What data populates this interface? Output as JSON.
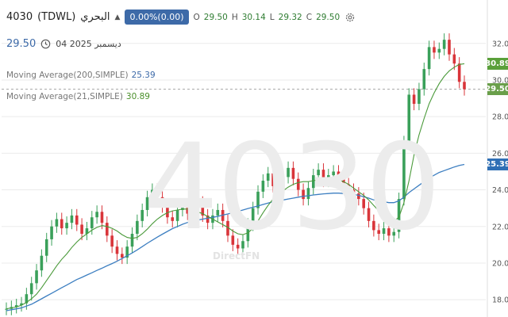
{
  "header": {
    "symbol": "4030",
    "exchange": "(TDWL)",
    "name": "البحري",
    "change_badge": "0.00%(0.00)",
    "open_label": "O",
    "open_value": "29.50",
    "high_label": "H",
    "high_value": "30.14",
    "low_label": "L",
    "low_value": "29.32",
    "close_label": "C",
    "close_value": "29.50",
    "last_price": "29.50",
    "date": "04 2025 ديسمبر"
  },
  "indicators": [
    {
      "label": "Moving Average(200,SIMPLE)",
      "value": "25.39",
      "color": "#3d7fc1"
    },
    {
      "label": "Moving Average(21,SIMPLE)",
      "value": "30.89",
      "color": "#4a9a3a"
    }
  ],
  "watermark": "4030",
  "brand": "DirectFN",
  "price_tags": [
    {
      "value": "30.89",
      "color": "#5aa03a",
      "y": 30.89
    },
    {
      "value": "29.50",
      "color": "#6a9f4a",
      "y": 29.5
    },
    {
      "value": "25.39",
      "color": "#2f6fb5",
      "y": 25.39
    }
  ],
  "chart_data": {
    "type": "candlestick",
    "ylim": [
      17.4,
      32.9
    ],
    "y_ticks": [
      "18.00",
      "20.00",
      "22.00",
      "24.00",
      "26.00",
      "28.00",
      "30.00",
      "32.00"
    ],
    "up_color": "#3aa05a",
    "down_color": "#d9353a",
    "close_series": [
      17.5,
      17.6,
      17.7,
      17.8,
      18.3,
      18.9,
      19.6,
      20.4,
      21.3,
      22.0,
      22.4,
      21.9,
      22.2,
      22.6,
      22.1,
      21.6,
      21.9,
      22.5,
      22.8,
      22.2,
      21.5,
      20.9,
      20.5,
      20.3,
      20.9,
      21.6,
      22.3,
      22.9,
      23.6,
      24.0,
      23.6,
      23.1,
      22.5,
      22.3,
      22.9,
      23.1,
      22.7,
      23.0,
      23.3,
      22.6,
      22.2,
      22.6,
      22.9,
      22.3,
      21.5,
      21.0,
      20.8,
      21.2,
      22.1,
      23.0,
      23.9,
      24.5,
      24.9,
      24.2,
      24.0,
      24.7,
      25.2,
      24.6,
      24.0,
      23.5,
      24.1,
      24.8,
      25.1,
      24.5,
      24.8,
      25.0,
      24.6,
      24.3,
      24.0,
      23.8,
      23.5,
      23.0,
      22.3,
      21.8,
      21.6,
      21.9,
      21.5,
      21.7,
      23.5,
      26.6,
      29.2,
      28.7,
      29.5,
      30.6,
      31.8,
      31.5,
      31.7,
      32.2,
      31.4,
      30.9,
      29.9,
      29.5
    ],
    "ma21": [
      17.5,
      17.55,
      17.6,
      17.7,
      17.85,
      18.05,
      18.3,
      18.65,
      19.05,
      19.45,
      19.85,
      20.2,
      20.5,
      20.85,
      21.15,
      21.4,
      21.6,
      21.8,
      21.95,
      22.05,
      22.0,
      21.9,
      21.75,
      21.55,
      21.4,
      21.35,
      21.4,
      21.6,
      21.85,
      22.15,
      22.4,
      22.6,
      22.75,
      22.85,
      22.9,
      22.95,
      22.95,
      22.9,
      22.8,
      22.7,
      22.55,
      22.4,
      22.25,
      22.1,
      21.95,
      21.75,
      21.6,
      21.55,
      21.65,
      21.9,
      22.3,
      22.75,
      23.15,
      23.5,
      23.75,
      23.95,
      24.15,
      24.3,
      24.4,
      24.45,
      24.45,
      24.5,
      24.55,
      24.55,
      24.6,
      24.6,
      24.55,
      24.45,
      24.3,
      24.1,
      23.9,
      23.7,
      23.45,
      23.15,
      22.85,
      22.55,
      22.35,
      22.3,
      22.5,
      23.3,
      24.5,
      25.9,
      27.0,
      27.9,
      28.7,
      29.3,
      29.8,
      30.2,
      30.5,
      30.7,
      30.85,
      30.89
    ],
    "ma200": [
      17.4,
      17.45,
      17.5,
      17.55,
      17.65,
      17.75,
      17.9,
      18.05,
      18.2,
      18.35,
      18.5,
      18.65,
      18.8,
      18.95,
      19.1,
      19.22,
      19.35,
      19.47,
      19.6,
      19.72,
      19.85,
      19.97,
      20.1,
      20.25,
      20.4,
      20.55,
      20.72,
      20.9,
      21.08,
      21.25,
      21.42,
      21.58,
      21.73,
      21.88,
      22.0,
      22.12,
      22.22,
      22.3,
      22.35,
      22.4,
      22.45,
      22.5,
      22.55,
      22.62,
      22.68,
      22.75,
      22.82,
      22.9,
      22.98,
      23.05,
      23.12,
      23.2,
      23.28,
      23.35,
      23.4,
      23.45,
      23.5,
      23.55,
      23.6,
      23.65,
      23.68,
      23.72,
      23.75,
      23.78,
      23.8,
      23.82,
      23.82,
      23.8,
      23.78,
      23.75,
      23.7,
      23.62,
      23.55,
      23.45,
      23.4,
      23.35,
      23.3,
      23.3,
      23.4,
      23.6,
      23.85,
      24.05,
      24.25,
      24.45,
      24.65,
      24.8,
      24.95,
      25.05,
      25.15,
      25.25,
      25.33,
      25.39
    ]
  }
}
